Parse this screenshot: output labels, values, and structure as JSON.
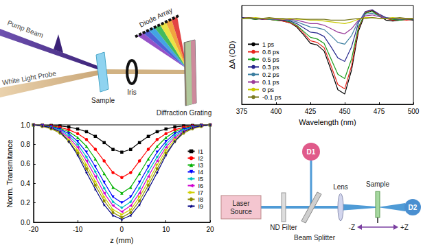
{
  "chart_data": [
    {
      "type": "line",
      "x_label": "Wavelength (nm)",
      "y_label": "ΔA (OD)",
      "x": [
        375,
        380,
        385,
        390,
        395,
        400,
        405,
        410,
        415,
        420,
        425,
        430,
        435,
        440,
        445,
        450,
        455,
        460,
        465,
        470,
        475,
        480,
        485,
        490,
        495,
        500
      ],
      "xlim": [
        375,
        500
      ],
      "xticks": [
        375,
        400,
        425,
        450,
        475,
        500
      ],
      "ylim": [
        -1.0,
        0.15
      ],
      "tick_labels": "x",
      "legend": "bottom-left",
      "series": [
        {
          "name": "1 ps",
          "color": "#000000",
          "values": [
            0.01,
            0.0,
            -0.01,
            0.0,
            -0.01,
            -0.02,
            -0.03,
            -0.05,
            -0.1,
            -0.19,
            -0.29,
            -0.31,
            -0.38,
            -0.6,
            -0.83,
            -0.88,
            -0.6,
            -0.15,
            0.06,
            0.09,
            0.03,
            -0.02,
            -0.03,
            -0.02,
            -0.01,
            -0.02
          ]
        },
        {
          "name": "0.8 ps",
          "color": "#e8241c",
          "values": [
            0.0,
            0.01,
            0.0,
            -0.01,
            -0.01,
            -0.02,
            -0.03,
            -0.05,
            -0.09,
            -0.17,
            -0.26,
            -0.28,
            -0.34,
            -0.55,
            -0.77,
            -0.82,
            -0.55,
            -0.12,
            0.07,
            0.1,
            0.04,
            0.0,
            -0.02,
            -0.01,
            -0.02,
            -0.01
          ]
        },
        {
          "name": "0.5 ps",
          "color": "#1a9a1a",
          "values": [
            0.0,
            0.0,
            -0.01,
            0.0,
            -0.01,
            -0.02,
            -0.02,
            -0.04,
            -0.08,
            -0.15,
            -0.22,
            -0.24,
            -0.29,
            -0.47,
            -0.65,
            -0.7,
            -0.47,
            -0.1,
            0.06,
            0.08,
            0.03,
            0.0,
            -0.01,
            -0.02,
            -0.01,
            -0.01
          ]
        },
        {
          "name": "0.3 ps",
          "color": "#26268c",
          "values": [
            0.01,
            0.0,
            0.0,
            -0.01,
            0.0,
            -0.01,
            -0.02,
            -0.03,
            -0.06,
            -0.11,
            -0.16,
            -0.17,
            -0.21,
            -0.33,
            -0.46,
            -0.5,
            -0.33,
            -0.05,
            0.08,
            0.1,
            0.05,
            0.01,
            0.0,
            -0.01,
            0.0,
            -0.01
          ]
        },
        {
          "name": "0.2 ps",
          "color": "#3c7ea0",
          "values": [
            0.0,
            0.0,
            0.0,
            0.0,
            -0.01,
            -0.01,
            -0.01,
            -0.02,
            -0.04,
            -0.07,
            -0.1,
            -0.11,
            -0.13,
            -0.2,
            -0.28,
            -0.3,
            -0.2,
            -0.03,
            0.05,
            0.06,
            0.03,
            0.0,
            0.0,
            -0.01,
            0.0,
            0.0
          ]
        },
        {
          "name": "0.1 ps",
          "color": "#9a3c9a",
          "values": [
            0.0,
            0.01,
            0.0,
            0.0,
            0.0,
            -0.01,
            -0.01,
            -0.01,
            -0.02,
            -0.04,
            -0.06,
            -0.06,
            -0.08,
            -0.12,
            -0.16,
            -0.18,
            -0.12,
            -0.02,
            0.03,
            0.04,
            0.02,
            0.0,
            0.0,
            0.0,
            -0.01,
            0.0
          ]
        },
        {
          "name": "0 ps",
          "color": "#c8c800",
          "values": [
            0.0,
            0.0,
            0.01,
            0.0,
            0.0,
            0.0,
            -0.01,
            0.0,
            -0.01,
            -0.01,
            -0.02,
            -0.02,
            -0.03,
            -0.04,
            -0.05,
            -0.06,
            -0.04,
            -0.01,
            0.01,
            0.01,
            0.0,
            0.0,
            0.01,
            0.0,
            0.0,
            0.0
          ]
        },
        {
          "name": "-0.1 ps",
          "color": "#7a7a20",
          "values": [
            0.0,
            0.01,
            0.0,
            0.0,
            0.01,
            0.0,
            0.0,
            -0.01,
            0.0,
            -0.01,
            -0.01,
            -0.01,
            -0.01,
            -0.02,
            -0.02,
            -0.02,
            -0.01,
            0.0,
            0.0,
            0.01,
            0.0,
            0.0,
            0.0,
            0.01,
            0.0,
            0.0
          ]
        }
      ]
    },
    {
      "type": "line",
      "x_label": "z (mm)",
      "y_label": "Norm. Transmitance",
      "x": [
        -20,
        -18,
        -16,
        -14,
        -12,
        -10,
        -8,
        -6,
        -4,
        -2,
        0,
        2,
        4,
        6,
        8,
        10,
        12,
        14,
        16,
        18,
        20
      ],
      "xlim": [
        -20,
        20
      ],
      "xticks": [
        -20,
        -10,
        0,
        10,
        20
      ],
      "ylim": [
        0,
        1
      ],
      "yticks": [
        {
          "value": 0,
          "label": "0.0"
        },
        {
          "value": 0.2,
          "label": "0.2"
        },
        {
          "value": 0.4,
          "label": "0.4"
        },
        {
          "value": 0.6,
          "label": "0.6"
        },
        {
          "value": 0.8,
          "label": "0.8"
        },
        {
          "value": 1,
          "label": "1.0"
        }
      ],
      "legend": "right",
      "series": [
        {
          "name": "I1",
          "color": "#000000",
          "marker": "square",
          "values": [
            1.0,
            0.997,
            0.994,
            0.989,
            0.978,
            0.958,
            0.93,
            0.882,
            0.818,
            0.748,
            0.72,
            0.748,
            0.818,
            0.882,
            0.93,
            0.958,
            0.978,
            0.989,
            0.994,
            0.997,
            1.0
          ]
        },
        {
          "name": "I2",
          "color": "#ff0000",
          "marker": "circle",
          "values": [
            1.0,
            0.995,
            0.99,
            0.975,
            0.95,
            0.91,
            0.85,
            0.75,
            0.63,
            0.51,
            0.46,
            0.51,
            0.63,
            0.75,
            0.85,
            0.91,
            0.95,
            0.975,
            0.99,
            0.995,
            1.0
          ]
        },
        {
          "name": "I3",
          "color": "#00b000",
          "marker": "triangle",
          "values": [
            1.0,
            0.995,
            0.985,
            0.965,
            0.93,
            0.87,
            0.78,
            0.65,
            0.5,
            0.36,
            0.3,
            0.36,
            0.5,
            0.65,
            0.78,
            0.87,
            0.93,
            0.965,
            0.985,
            0.995,
            1.0
          ]
        },
        {
          "name": "I4",
          "color": "#0000ff",
          "marker": "triangle-down",
          "values": [
            1.0,
            0.99,
            0.98,
            0.955,
            0.91,
            0.83,
            0.72,
            0.57,
            0.41,
            0.26,
            0.2,
            0.26,
            0.41,
            0.57,
            0.72,
            0.83,
            0.91,
            0.955,
            0.98,
            0.99,
            1.0
          ]
        },
        {
          "name": "I5",
          "color": "#00c0c0",
          "marker": "diamond",
          "values": [
            1.0,
            0.99,
            0.975,
            0.945,
            0.89,
            0.8,
            0.67,
            0.52,
            0.35,
            0.21,
            0.15,
            0.21,
            0.35,
            0.52,
            0.67,
            0.8,
            0.89,
            0.945,
            0.975,
            0.99,
            1.0
          ]
        },
        {
          "name": "I6",
          "color": "#d000d0",
          "marker": "triangle-left",
          "values": [
            1.0,
            0.99,
            0.97,
            0.935,
            0.87,
            0.77,
            0.63,
            0.47,
            0.3,
            0.17,
            0.11,
            0.17,
            0.3,
            0.47,
            0.63,
            0.77,
            0.87,
            0.935,
            0.97,
            0.99,
            1.0
          ]
        },
        {
          "name": "I7",
          "color": "#d0d000",
          "marker": "triangle-right",
          "values": [
            1.0,
            0.985,
            0.965,
            0.925,
            0.85,
            0.74,
            0.59,
            0.42,
            0.26,
            0.13,
            0.08,
            0.13,
            0.26,
            0.42,
            0.59,
            0.74,
            0.85,
            0.925,
            0.965,
            0.985,
            1.0
          ]
        },
        {
          "name": "I8",
          "color": "#8b8b00",
          "marker": "hexagon",
          "values": [
            1.0,
            0.985,
            0.96,
            0.915,
            0.83,
            0.71,
            0.55,
            0.38,
            0.22,
            0.1,
            0.05,
            0.1,
            0.22,
            0.38,
            0.55,
            0.71,
            0.83,
            0.915,
            0.96,
            0.985,
            1.0
          ]
        },
        {
          "name": "I9",
          "color": "#000080",
          "marker": "star",
          "values": [
            1.0,
            0.99,
            0.97,
            0.93,
            0.83,
            0.69,
            0.51,
            0.34,
            0.18,
            0.07,
            0.03,
            0.07,
            0.18,
            0.34,
            0.51,
            0.69,
            0.83,
            0.93,
            0.97,
            0.99,
            1.0
          ]
        }
      ]
    }
  ],
  "diagrams": {
    "pump_probe": {
      "pump_beam": "Pump Beam",
      "probe_beam": "White Light Probe",
      "sample": "Sample",
      "iris": "Iris",
      "grating": "Diffraction Grating",
      "detector": "Diode Array"
    },
    "z_scan_setup": {
      "source": "Laser Source",
      "filter": "ND Filter",
      "splitter": "Beam Splitter",
      "detector_1": "D1",
      "lens": "Lens",
      "sample": "Sample",
      "detector_2": "D2",
      "minus_z": "-Z",
      "plus_z": "+Z"
    }
  }
}
